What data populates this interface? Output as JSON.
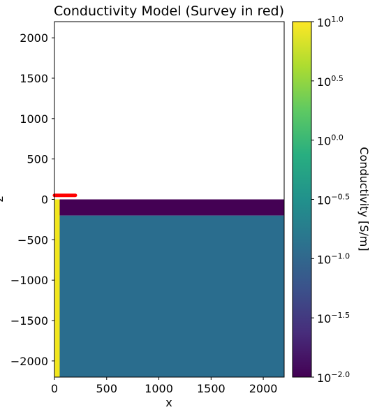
{
  "chart_data": {
    "type": "heatmap",
    "title": "Conductivity Model (Survey in red)",
    "xlabel": "x",
    "ylabel": "z",
    "xlim": [
      0,
      2200
    ],
    "ylim": [
      -2200,
      2200
    ],
    "xticks": [
      0,
      500,
      1000,
      1500,
      2000
    ],
    "yticks": [
      2000,
      1500,
      1000,
      500,
      0,
      -500,
      -1000,
      -1500,
      -2000
    ],
    "grid": false,
    "cells": [
      {
        "name": "air",
        "x": [
          0,
          2200
        ],
        "z": [
          0,
          2200
        ],
        "conductivity": null,
        "color": "#ffffff"
      },
      {
        "name": "top-layer",
        "x": [
          0,
          2200
        ],
        "z": [
          -200,
          0
        ],
        "conductivity": 0.01,
        "color": "#440154"
      },
      {
        "name": "halfspace",
        "x": [
          0,
          2200
        ],
        "z": [
          -2200,
          -200
        ],
        "conductivity": 0.1,
        "color": "#2a6d8e"
      },
      {
        "name": "conductor-strip",
        "x": [
          0,
          50
        ],
        "z": [
          -2200,
          0
        ],
        "conductivity": 10,
        "color": "#f2e61d"
      }
    ],
    "survey": {
      "color": "#ff0000",
      "x": [
        0,
        200
      ],
      "z": 50
    },
    "colorbar": {
      "label": "Conductivity [S/m]",
      "scale": "log",
      "colormap": "viridis",
      "range": [
        0.01,
        10
      ],
      "ticks": [
        {
          "base": "10",
          "exp": "1.0",
          "log": 1.0
        },
        {
          "base": "10",
          "exp": "0.5",
          "log": 0.5
        },
        {
          "base": "10",
          "exp": "0.0",
          "log": 0.0
        },
        {
          "base": "10",
          "exp": "−0.5",
          "log": -0.5
        },
        {
          "base": "10",
          "exp": "−1.0",
          "log": -1.0
        },
        {
          "base": "10",
          "exp": "−1.5",
          "log": -1.5
        },
        {
          "base": "10",
          "exp": "−2.0",
          "log": -2.0
        }
      ]
    }
  }
}
